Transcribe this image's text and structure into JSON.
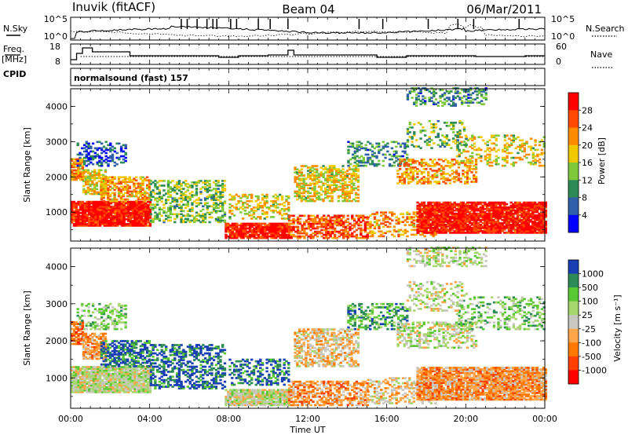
{
  "header": {
    "station": "Inuvik (fitACF)",
    "beam": "Beam 04",
    "date": "06/Mar/2011"
  },
  "strips": {
    "nsky_label": "N.Sky",
    "nsearch_label": "N.Search",
    "nsky_ticks": [
      "10^5",
      "10^0"
    ],
    "nsearch_ticks": [
      "10^5",
      "10^0"
    ],
    "freq_label_1": "Freq.",
    "freq_label_2": "[MHz]",
    "freq_ticks": [
      "18",
      "8"
    ],
    "nave_label": "Nave",
    "nave_ticks": [
      "60",
      "0"
    ],
    "cpid_label": "CPID",
    "cpid_value": "normalsound (fast) 157"
  },
  "chart_data": {
    "type": "heatmap",
    "x_axis": {
      "label": "Time UT",
      "ticks": [
        "00:00",
        "04:00",
        "08:00",
        "12:00",
        "16:00",
        "20:00",
        "00:00"
      ],
      "range_hours": [
        0,
        24
      ]
    },
    "panels": [
      {
        "name": "Power",
        "ylabel": "Slant Range [km]",
        "yticks": [
          "1000",
          "2000",
          "3000",
          "4000"
        ],
        "ytick_values": [
          1000,
          2000,
          3000,
          4000
        ],
        "ylim": [
          180,
          4500
        ],
        "colorbar": {
          "title": "Power [dB]",
          "labels": [
            "28",
            "24",
            "20",
            "16",
            "12",
            "8",
            "4"
          ],
          "colors": [
            "#ff0000",
            "#ff4a00",
            "#ff8c00",
            "#f0c800",
            "#7ec83c",
            "#2e8b57",
            "#2e5fa8",
            "#0000ff"
          ]
        }
      },
      {
        "name": "Velocity",
        "ylabel": "Slant Range [km]",
        "yticks": [
          "1000",
          "2000",
          "3000",
          "4000"
        ],
        "ytick_values": [
          1000,
          2000,
          3000,
          4000
        ],
        "ylim": [
          180,
          4500
        ],
        "colorbar": {
          "title": "Velocity [m s⁻¹]",
          "labels": [
            "1000",
            "500",
            "100",
            "25",
            "-25",
            "-100",
            "-500",
            "-1000"
          ],
          "colors": [
            "#1a3fb5",
            "#2e8b57",
            "#5ac832",
            "#a8d66e",
            "#c8c8c0",
            "#ffa54a",
            "#ff7800",
            "#ff4000",
            "#ff0000"
          ]
        }
      }
    ]
  }
}
